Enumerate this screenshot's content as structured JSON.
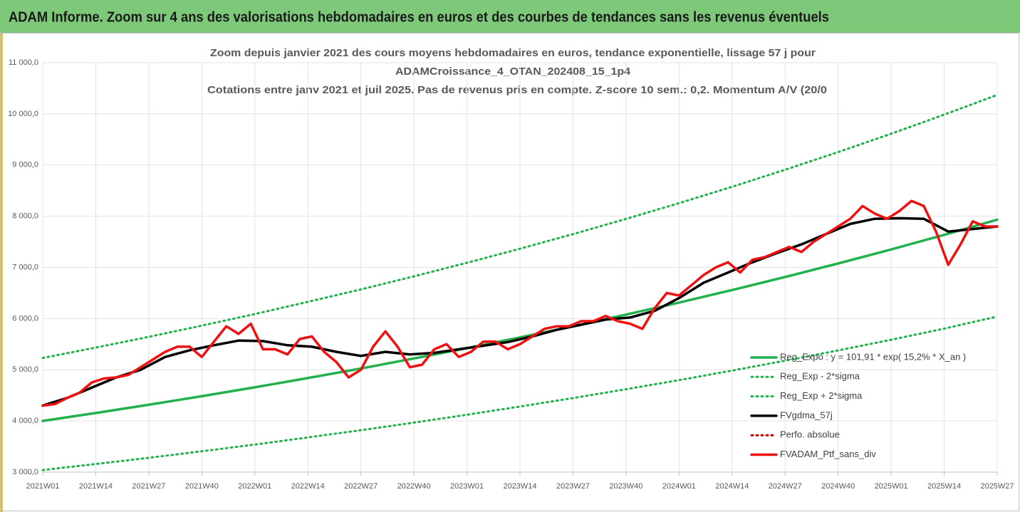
{
  "chart_data": {
    "type": "line",
    "title": "ADAM Informe. Zoom sur 4 ans des valorisations hebdomadaires en euros et des courbes de tendances sans les revenus éventuels",
    "subtitle": [
      "Zoom depuis janvier 2021 des cours moyens hebdomadaires  en euros, tendance exponentielle, lissage 57 j pour",
      "ADAMCroissance_4_OTAN_202408_15_1p4",
      "Cotations entre janv 2021 et juil 2025. Pas de revenus pris en compte. Z-score 10 sem.: 0,2. Momentum A/V (20/0"
    ],
    "xlim": [
      "2021W01",
      "2025W27"
    ],
    "xticks": [
      "2021W01",
      "2021W14",
      "2021W27",
      "2021W40",
      "2022W01",
      "2022W14",
      "2022W27",
      "2022W40",
      "2023W01",
      "2023W14",
      "2023W27",
      "2023W40",
      "2024W01",
      "2024W14",
      "2024W27",
      "2024W40",
      "2025W01",
      "2025W14",
      "2025W27"
    ],
    "ylim": [
      3000,
      11000
    ],
    "yticks": [
      {
        "value": 3000,
        "label": "3 000,0"
      },
      {
        "value": 4000,
        "label": "4 000,0"
      },
      {
        "value": 5000,
        "label": "5 000,0"
      },
      {
        "value": 6000,
        "label": "6 000,0"
      },
      {
        "value": 7000,
        "label": "7 000,0"
      },
      {
        "value": 8000,
        "label": "8 000,0"
      },
      {
        "value": 9000,
        "label": "9 000,0"
      },
      {
        "value": 10000,
        "label": "10 000,0"
      },
      {
        "value": 11000,
        "label": "11 000,0"
      }
    ],
    "grid": true,
    "legend": "lower-right",
    "series": [
      {
        "name": "Reg_Expo : y = 101,91 * exp( 15,2% *  X_an )",
        "color": "#22b14c",
        "dash": "solid",
        "width": 3.5,
        "x": [
          "2021W01",
          "2021W14",
          "2021W27",
          "2021W40",
          "2022W01",
          "2022W14",
          "2022W27",
          "2022W40",
          "2023W01",
          "2023W14",
          "2023W27",
          "2023W40",
          "2024W01",
          "2024W14",
          "2024W27",
          "2024W40",
          "2025W01",
          "2025W14",
          "2025W27"
        ],
        "values": [
          4000,
          4155,
          4316,
          4483,
          4657,
          4838,
          5025,
          5220,
          5422,
          5633,
          5851,
          6078,
          6313,
          6558,
          6812,
          7076,
          7351,
          7636,
          7932
        ]
      },
      {
        "name": "Reg_Exp - 2*sigma",
        "color": "#22b14c",
        "dash": "dotted",
        "width": 3,
        "x": [
          "2021W01",
          "2021W14",
          "2021W27",
          "2021W40",
          "2022W01",
          "2022W14",
          "2022W27",
          "2022W40",
          "2023W01",
          "2023W14",
          "2023W27",
          "2023W40",
          "2024W01",
          "2024W14",
          "2024W27",
          "2024W40",
          "2025W01",
          "2025W14",
          "2025W27"
        ],
        "values": [
          3040,
          3158,
          3280,
          3407,
          3539,
          3677,
          3819,
          3967,
          4121,
          4281,
          4447,
          4619,
          4798,
          4984,
          5177,
          5378,
          5587,
          5803,
          6040
        ]
      },
      {
        "name": "Reg_Exp + 2*sigma",
        "color": "#22b14c",
        "dash": "dotted",
        "width": 3,
        "x": [
          "2021W01",
          "2021W14",
          "2021W27",
          "2021W40",
          "2022W01",
          "2022W14",
          "2022W27",
          "2022W40",
          "2023W01",
          "2023W14",
          "2023W27",
          "2023W40",
          "2024W01",
          "2024W14",
          "2024W27",
          "2024W40",
          "2025W01",
          "2025W14",
          "2025W27"
        ],
        "values": [
          5230,
          5433,
          5643,
          5862,
          6089,
          6326,
          6570,
          6825,
          7090,
          7365,
          7650,
          7947,
          8255,
          8575,
          8907,
          9252,
          9611,
          9984,
          10370
        ]
      },
      {
        "name": "FVgdma_57j",
        "color": "#000000",
        "dash": "solid",
        "width": 3.5,
        "x": [
          "2021W01",
          "2021W07",
          "2021W13",
          "2021W19",
          "2021W25",
          "2021W31",
          "2021W37",
          "2021W43",
          "2021W49",
          "2022W03",
          "2022W09",
          "2022W15",
          "2022W21",
          "2022W27",
          "2022W33",
          "2022W39",
          "2022W45",
          "2022W51",
          "2023W05",
          "2023W11",
          "2023W17",
          "2023W23",
          "2023W29",
          "2023W35",
          "2023W41",
          "2023W47",
          "2024W01",
          "2024W07",
          "2024W13",
          "2024W19",
          "2024W25",
          "2024W31",
          "2024W37",
          "2024W43",
          "2024W49",
          "2025W03",
          "2025W09",
          "2025W15",
          "2025W21",
          "2025W27"
        ],
        "values": [
          4300,
          4450,
          4650,
          4850,
          5000,
          5250,
          5380,
          5480,
          5570,
          5560,
          5480,
          5450,
          5350,
          5270,
          5350,
          5300,
          5330,
          5400,
          5470,
          5540,
          5650,
          5780,
          5880,
          5980,
          6020,
          6150,
          6400,
          6700,
          6900,
          7100,
          7280,
          7450,
          7650,
          7850,
          7950,
          7960,
          7950,
          7700,
          7750,
          7800
        ]
      },
      {
        "name": "Perfo. absolue",
        "color": "#c00000",
        "dash": "dotted",
        "width": 3,
        "x": [],
        "values": []
      },
      {
        "name": "FVADAM_Ptf_sans_div",
        "color": "#ee1111",
        "dash": "solid",
        "width": 3.5,
        "x": [
          "2021W01",
          "2021W04",
          "2021W07",
          "2021W10",
          "2021W13",
          "2021W16",
          "2021W19",
          "2021W22",
          "2021W25",
          "2021W28",
          "2021W31",
          "2021W34",
          "2021W37",
          "2021W40",
          "2021W43",
          "2021W46",
          "2021W49",
          "2021W52",
          "2022W03",
          "2022W06",
          "2022W09",
          "2022W12",
          "2022W15",
          "2022W18",
          "2022W21",
          "2022W24",
          "2022W27",
          "2022W30",
          "2022W33",
          "2022W36",
          "2022W39",
          "2022W42",
          "2022W45",
          "2022W48",
          "2022W51",
          "2023W02",
          "2023W05",
          "2023W08",
          "2023W11",
          "2023W14",
          "2023W17",
          "2023W20",
          "2023W23",
          "2023W26",
          "2023W29",
          "2023W32",
          "2023W35",
          "2023W38",
          "2023W41",
          "2023W44",
          "2023W47",
          "2023W50",
          "2024W01",
          "2024W04",
          "2024W07",
          "2024W10",
          "2024W13",
          "2024W16",
          "2024W19",
          "2024W22",
          "2024W25",
          "2024W28",
          "2024W31",
          "2024W34",
          "2024W37",
          "2024W40",
          "2024W43",
          "2024W46",
          "2024W49",
          "2024W52",
          "2025W03",
          "2025W06",
          "2025W09",
          "2025W12",
          "2025W15",
          "2025W18",
          "2025W21",
          "2025W24",
          "2025W27"
        ],
        "values": [
          4300,
          4330,
          4450,
          4550,
          4750,
          4830,
          4850,
          4900,
          5050,
          5200,
          5350,
          5450,
          5450,
          5250,
          5550,
          5850,
          5700,
          5900,
          5400,
          5400,
          5300,
          5600,
          5650,
          5350,
          5150,
          4850,
          5000,
          5450,
          5750,
          5450,
          5050,
          5100,
          5400,
          5500,
          5250,
          5350,
          5550,
          5550,
          5400,
          5500,
          5650,
          5800,
          5850,
          5850,
          5950,
          5950,
          6050,
          5950,
          5900,
          5800,
          6200,
          6500,
          6450,
          6650,
          6850,
          7000,
          7100,
          6900,
          7150,
          7200,
          7300,
          7400,
          7300,
          7500,
          7650,
          7800,
          7950,
          8200,
          8050,
          7950,
          8100,
          8300,
          8200,
          7700,
          7050,
          7450,
          7900,
          7800,
          7800
        ]
      }
    ]
  }
}
